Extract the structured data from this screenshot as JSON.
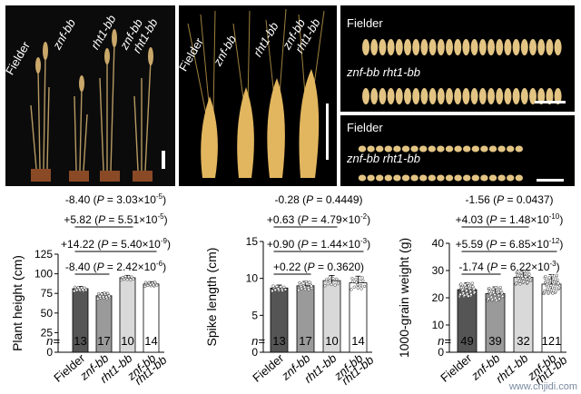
{
  "photos": {
    "plants": {
      "labels": [
        "Fielder",
        "znf-bb",
        "rht1-bb",
        "znf-bb",
        "rht1-bb"
      ]
    },
    "spikes": {
      "labels": [
        "Fielder",
        "znf-bb",
        "rht1-bb",
        "znf-bb",
        "rht1-bb"
      ]
    },
    "grains_length": {
      "row1": "Fielder",
      "row2": "znf-bb rht1-bb"
    },
    "grains_width": {
      "row1": "Fielder",
      "row2": "znf-bb rht1-bb"
    }
  },
  "chart_data": [
    {
      "type": "bar",
      "ylabel": "Plant height (cm)",
      "ylim": [
        0,
        125
      ],
      "yticks": [
        0,
        25,
        50,
        75,
        100,
        125
      ],
      "categories": [
        [
          "Fielder"
        ],
        [
          "znf-bb"
        ],
        [
          "rht1-bb"
        ],
        [
          "znf-bb",
          "rht1-bb"
        ]
      ],
      "values": [
        81,
        72,
        95,
        87
      ],
      "errors": [
        3,
        4,
        3,
        3
      ],
      "bar_colors": [
        "#555555",
        "#9a9a9a",
        "#d9d9d9",
        "#ffffff"
      ],
      "n_prefix": "n=",
      "n": [
        "13",
        "17",
        "10",
        "14"
      ],
      "stats": [
        {
          "value": "-8.40",
          "p": "3.03×10",
          "exp": "-5"
        },
        {
          "value": "+5.82",
          "p": "5.51×10",
          "exp": "-5"
        },
        {
          "value": "+14.22",
          "p": "5.40×10",
          "exp": "-9"
        },
        {
          "value": "-8.40",
          "p": "2.42×10",
          "exp": "-6"
        }
      ]
    },
    {
      "type": "bar",
      "ylabel": "Spike length (cm)",
      "ylim": [
        0,
        15
      ],
      "yticks": [
        0,
        5,
        10,
        15
      ],
      "categories": [
        [
          "Fielder"
        ],
        [
          "znf-bb"
        ],
        [
          "rht1-bb"
        ],
        [
          "znf-bb",
          "rht1-bb"
        ]
      ],
      "values": [
        8.7,
        9.0,
        9.7,
        9.4
      ],
      "errors": [
        0.4,
        0.6,
        0.7,
        0.9
      ],
      "bar_colors": [
        "#555555",
        "#9a9a9a",
        "#d9d9d9",
        "#ffffff"
      ],
      "n_prefix": "n=",
      "n": [
        "13",
        "17",
        "10",
        "14"
      ],
      "stats": [
        {
          "value": "-0.28",
          "p": "0.4449",
          "exp": ""
        },
        {
          "value": "+0.63",
          "p": "4.79×10",
          "exp": "-2"
        },
        {
          "value": "+0.90",
          "p": "1.44×10",
          "exp": "-3"
        },
        {
          "value": "+0.22",
          "p": "0.3620",
          "exp": ""
        }
      ]
    },
    {
      "type": "bar",
      "ylabel": "1000-grain weight (g)",
      "ylim": [
        0,
        40
      ],
      "yticks": [
        0,
        10,
        20,
        30,
        40
      ],
      "categories": [
        [
          "Fielder"
        ],
        [
          "znf-bb"
        ],
        [
          "rht1-bb"
        ],
        [
          "znf-bb",
          "rht1-bb"
        ]
      ],
      "values": [
        23,
        21.5,
        27.5,
        25
      ],
      "errors": [
        2.5,
        2.5,
        2.5,
        3.5
      ],
      "bar_colors": [
        "#555555",
        "#9a9a9a",
        "#d9d9d9",
        "#ffffff"
      ],
      "n_prefix": "n=",
      "n": [
        "49",
        "39",
        "32",
        "121"
      ],
      "stats": [
        {
          "value": "-1.56",
          "p": "0.0437",
          "exp": ""
        },
        {
          "value": "+4.03",
          "p": "1.48×10",
          "exp": "-10"
        },
        {
          "value": "+5.59",
          "p": "6.85×10",
          "exp": "-12"
        },
        {
          "value": "-1.74",
          "p": "6.22×10",
          "exp": "-3"
        }
      ]
    }
  ],
  "watermark": "www.cnjidi.com"
}
